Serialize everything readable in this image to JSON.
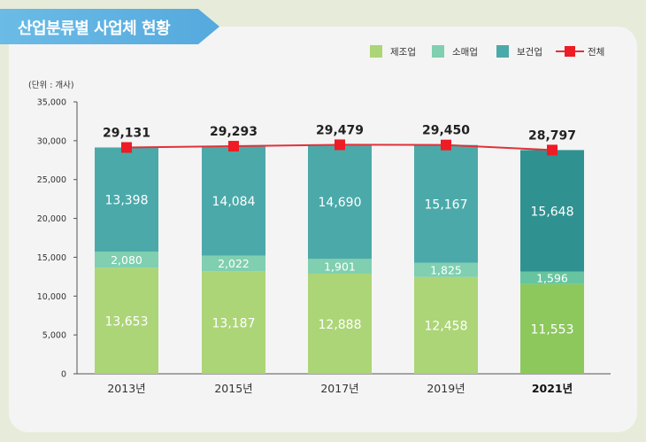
{
  "header": {
    "title": "산업분류별 사업체 현황"
  },
  "colors": {
    "manufacturing": "#acd577",
    "manufacturing_hl": "#8cc85c",
    "retail": "#7fcfb0",
    "retail_hl": "#66c4a0",
    "health": "#4ca9a9",
    "health_hl": "#2f9291",
    "total": "#ee1c25",
    "line": "#e0323a"
  },
  "chart_data": {
    "type": "bar",
    "stacked": true,
    "unit_label": "(단위 : 개사)",
    "categories": [
      "2013년",
      "2015년",
      "2017년",
      "2019년",
      "2021년"
    ],
    "highlight_category": "2021년",
    "series": [
      {
        "name": "제조업",
        "values": [
          13653,
          13187,
          12888,
          12458,
          11553
        ],
        "labels": [
          "13,653",
          "13,187",
          "12,888",
          "12,458",
          "11,553"
        ]
      },
      {
        "name": "소매업",
        "values": [
          2080,
          2022,
          1901,
          1825,
          1596
        ],
        "labels": [
          "2,080",
          "2,022",
          "1,901",
          "1,825",
          "1,596"
        ]
      },
      {
        "name": "보건업",
        "values": [
          13398,
          14084,
          14690,
          15167,
          15648
        ],
        "labels": [
          "13,398",
          "14,084",
          "14,690",
          "15,167",
          "15,648"
        ]
      }
    ],
    "total": {
      "name": "전체",
      "type": "line",
      "values": [
        29131,
        29293,
        29479,
        29450,
        28797
      ],
      "labels": [
        "29,131",
        "29,293",
        "29,479",
        "29,450",
        "28,797"
      ]
    },
    "ylim": [
      0,
      35000
    ],
    "yticks": [
      0,
      5000,
      10000,
      15000,
      20000,
      25000,
      30000,
      35000
    ],
    "ytick_labels": [
      "0",
      "5,000",
      "10,000",
      "15,000",
      "20,000",
      "25,000",
      "30,000",
      "35,000"
    ],
    "legend_position": "top-right",
    "grid": false
  }
}
